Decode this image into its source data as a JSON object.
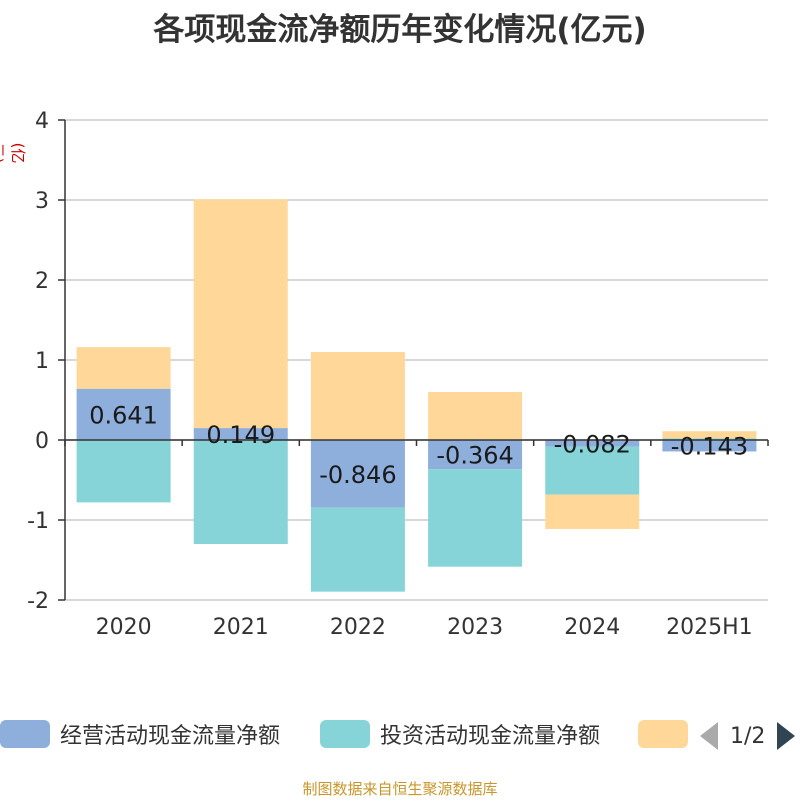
{
  "chart_data": {
    "type": "bar",
    "stacked": true,
    "title": "各项现金流净额历年变化情况(亿元)",
    "ylabel": "(亿元)",
    "ylim": [
      -2,
      4
    ],
    "yticks": [
      -2,
      -1,
      0,
      1,
      2,
      3,
      4
    ],
    "grid": true,
    "legend_position": "bottom",
    "categories": [
      "2020",
      "2021",
      "2022",
      "2023",
      "2024",
      "2025H1"
    ],
    "series": [
      {
        "name": "经营活动现金流量净额",
        "color": "#8eaedc",
        "values": [
          0.641,
          0.149,
          -0.846,
          -0.364,
          -0.082,
          -0.143
        ],
        "labels": [
          "0.641",
          "0.149",
          "-0.846",
          "-0.364",
          "-0.082",
          "-0.143"
        ]
      },
      {
        "name": "投资活动现金流量净额",
        "color": "#86d4d8",
        "values": [
          -0.78,
          -1.3,
          -1.05,
          -1.22,
          -0.6,
          0.02
        ]
      },
      {
        "name": "",
        "color": "#ffd899",
        "values": [
          0.52,
          2.86,
          1.1,
          0.6,
          -0.43,
          0.09
        ]
      }
    ]
  },
  "legend_pager": "1/2",
  "source": "制图数据来自恒生聚源数据库"
}
